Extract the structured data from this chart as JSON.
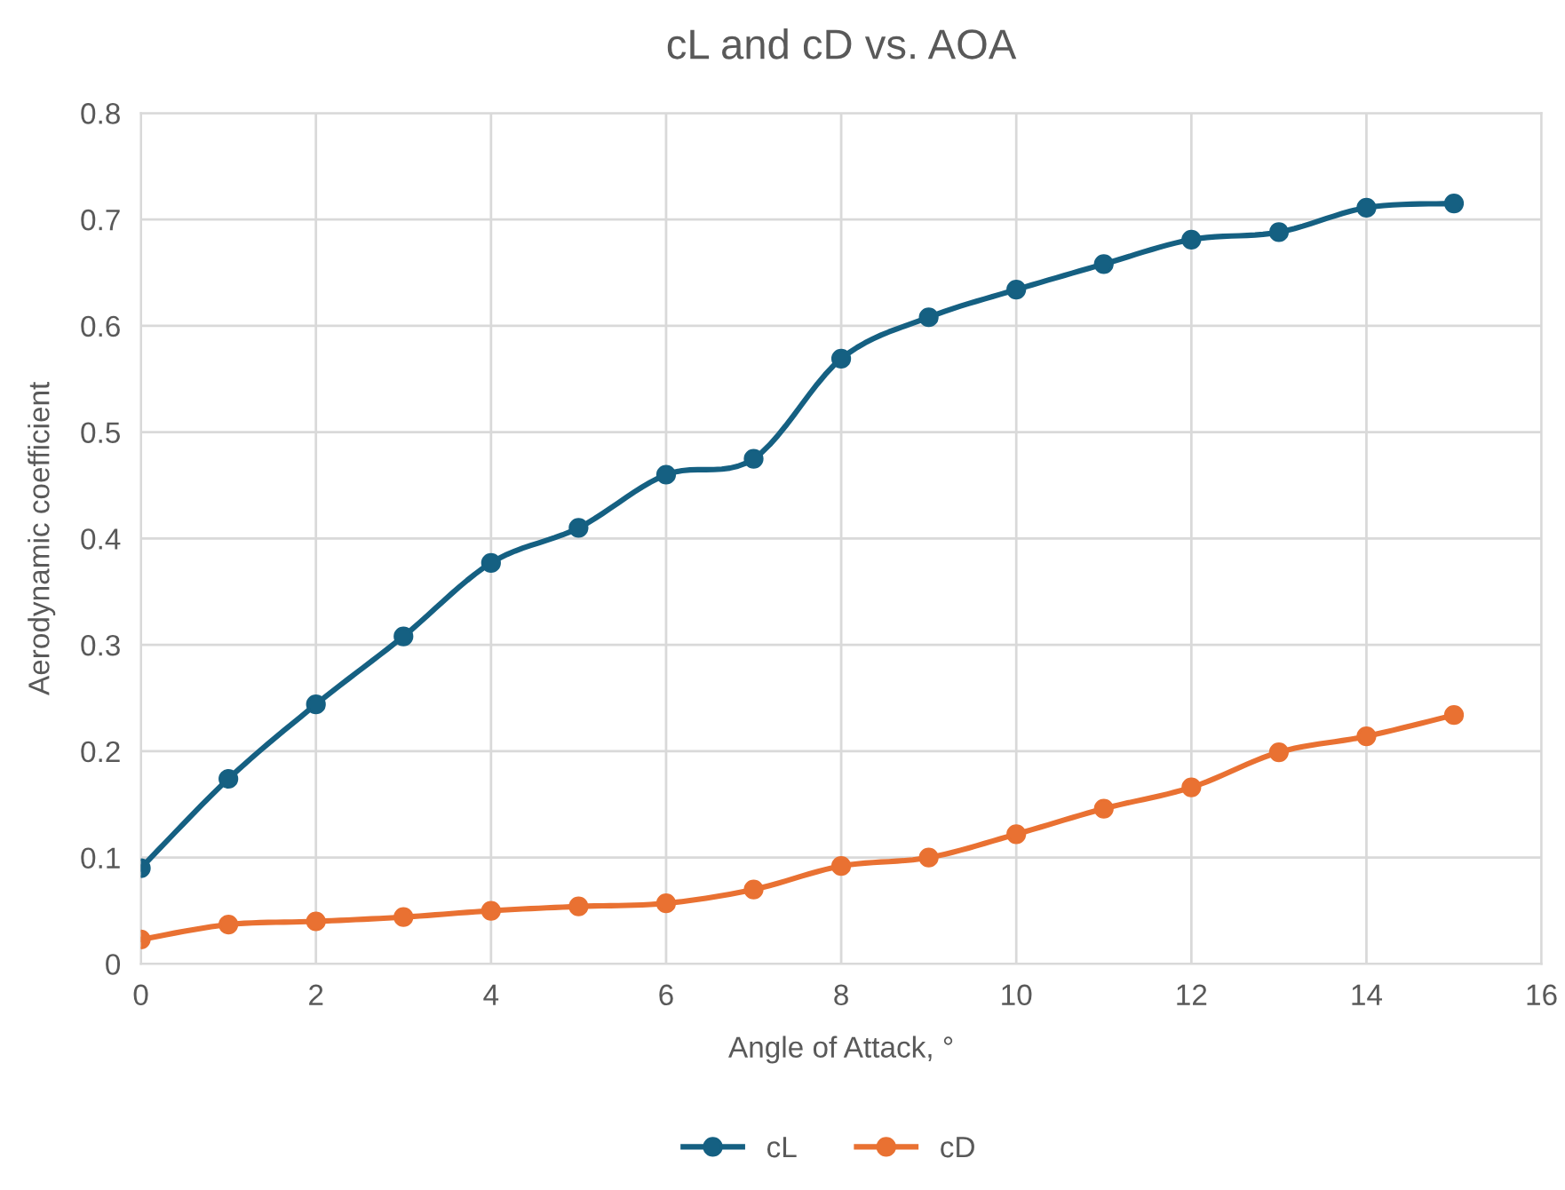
{
  "chart_data": {
    "type": "line",
    "title": "cL and cD vs. AOA",
    "xlabel": "Angle of Attack, °",
    "ylabel": "Aerodynamic coefficient",
    "x": [
      0,
      1,
      2,
      3,
      4,
      5,
      6,
      7,
      8,
      9,
      10,
      11,
      12,
      13,
      14,
      15
    ],
    "series": [
      {
        "name": "cL",
        "color": "#156082",
        "values": [
          0.09,
          0.174,
          0.244,
          0.308,
          0.377,
          0.41,
          0.46,
          0.475,
          0.569,
          0.608,
          0.634,
          0.658,
          0.681,
          0.688,
          0.711,
          0.715
        ]
      },
      {
        "name": "cD",
        "color": "#e97132",
        "values": [
          0.023,
          0.037,
          0.04,
          0.044,
          0.05,
          0.054,
          0.057,
          0.07,
          0.092,
          0.1,
          0.122,
          0.146,
          0.166,
          0.199,
          0.214,
          0.234
        ]
      }
    ],
    "xlim": [
      0,
      16
    ],
    "xticks": [
      0,
      2,
      4,
      6,
      8,
      10,
      12,
      14,
      16
    ],
    "ylim": [
      0,
      0.8
    ],
    "yticks": [
      0,
      0.1,
      0.2,
      0.3,
      0.4,
      0.5,
      0.6,
      0.7,
      0.8
    ],
    "grid": true,
    "legend": "bottom",
    "marker": "circle",
    "line_style": "solid"
  }
}
